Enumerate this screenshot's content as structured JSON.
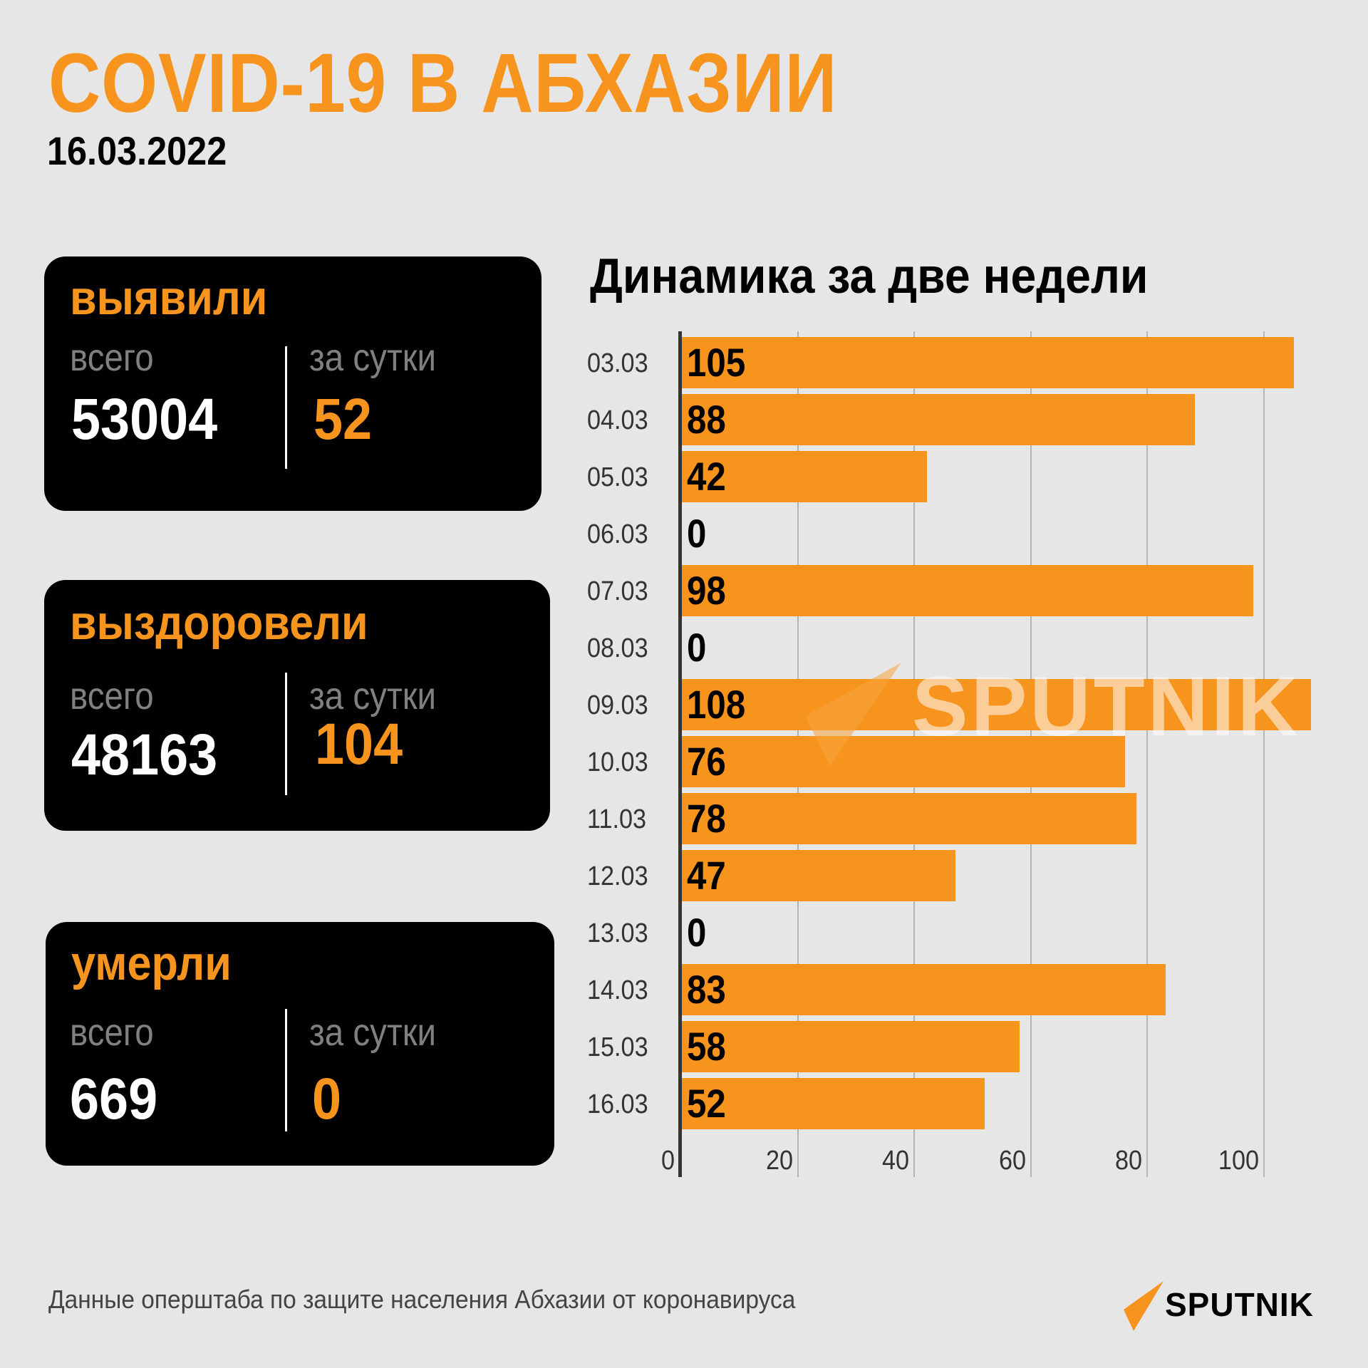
{
  "header": {
    "title": "COVID-19 В АБХАЗИИ",
    "date": "16.03.2022"
  },
  "cards": [
    {
      "title": "выявили",
      "total_label": "всего",
      "daily_label": "за сутки",
      "total": "53004",
      "daily": "52"
    },
    {
      "title": "выздоровели",
      "total_label": "всего",
      "daily_label": "за сутки",
      "total": "48163",
      "daily": "104"
    },
    {
      "title": "умерли",
      "total_label": "всего",
      "daily_label": "за сутки",
      "total": "669",
      "daily": "0"
    }
  ],
  "colors": {
    "accent": "#f7941d",
    "background": "#e6e6e6",
    "card": "#000000"
  },
  "chart_data": {
    "type": "bar",
    "orientation": "horizontal",
    "title": "Динамика за две недели",
    "categories": [
      "03.03",
      "04.03",
      "05.03",
      "06.03",
      "07.03",
      "08.03",
      "09.03",
      "10.03",
      "11.03",
      "12.03",
      "13.03",
      "14.03",
      "15.03",
      "16.03"
    ],
    "values": [
      105,
      88,
      42,
      0,
      98,
      0,
      108,
      76,
      78,
      47,
      0,
      83,
      58,
      52
    ],
    "x_ticks": [
      "0",
      "20",
      "40",
      "60",
      "80",
      "100"
    ],
    "xlim": [
      0,
      110
    ],
    "grid": true,
    "xlabel": "",
    "ylabel": ""
  },
  "watermark": {
    "text": "SPUTNIK"
  },
  "footer": {
    "source": "Данные оперштаба по защите населения Абхазии от коронавируса",
    "logo_text": "SPUTNIK"
  }
}
